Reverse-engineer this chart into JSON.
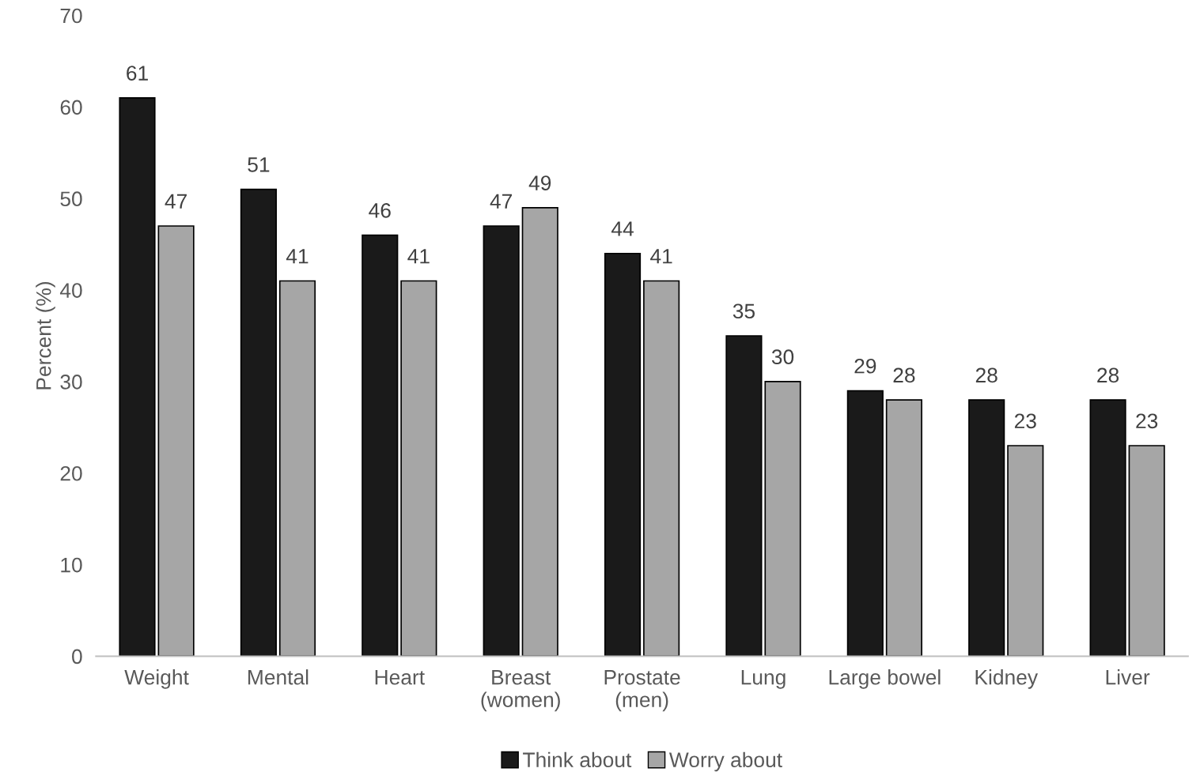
{
  "chart_data": {
    "type": "bar",
    "ylabel": "Percent (%)",
    "categories": [
      "Weight",
      "Mental",
      "Heart",
      "Breast\n(women)",
      "Prostate\n(men)",
      "Lung",
      "Large bowel",
      "Kidney",
      "Liver"
    ],
    "series": [
      {
        "name": "Think about",
        "color": "#1a1a1a",
        "values": [
          61,
          51,
          46,
          47,
          44,
          35,
          29,
          28,
          28
        ]
      },
      {
        "name": "Worry about",
        "color": "#a6a6a6",
        "values": [
          47,
          41,
          41,
          49,
          41,
          30,
          28,
          23,
          23
        ]
      }
    ],
    "ylim": [
      0,
      70
    ],
    "yticks": [
      0,
      10,
      20,
      30,
      40,
      50,
      60,
      70
    ],
    "data_labels": true,
    "legend": "bottom",
    "grid": false
  }
}
